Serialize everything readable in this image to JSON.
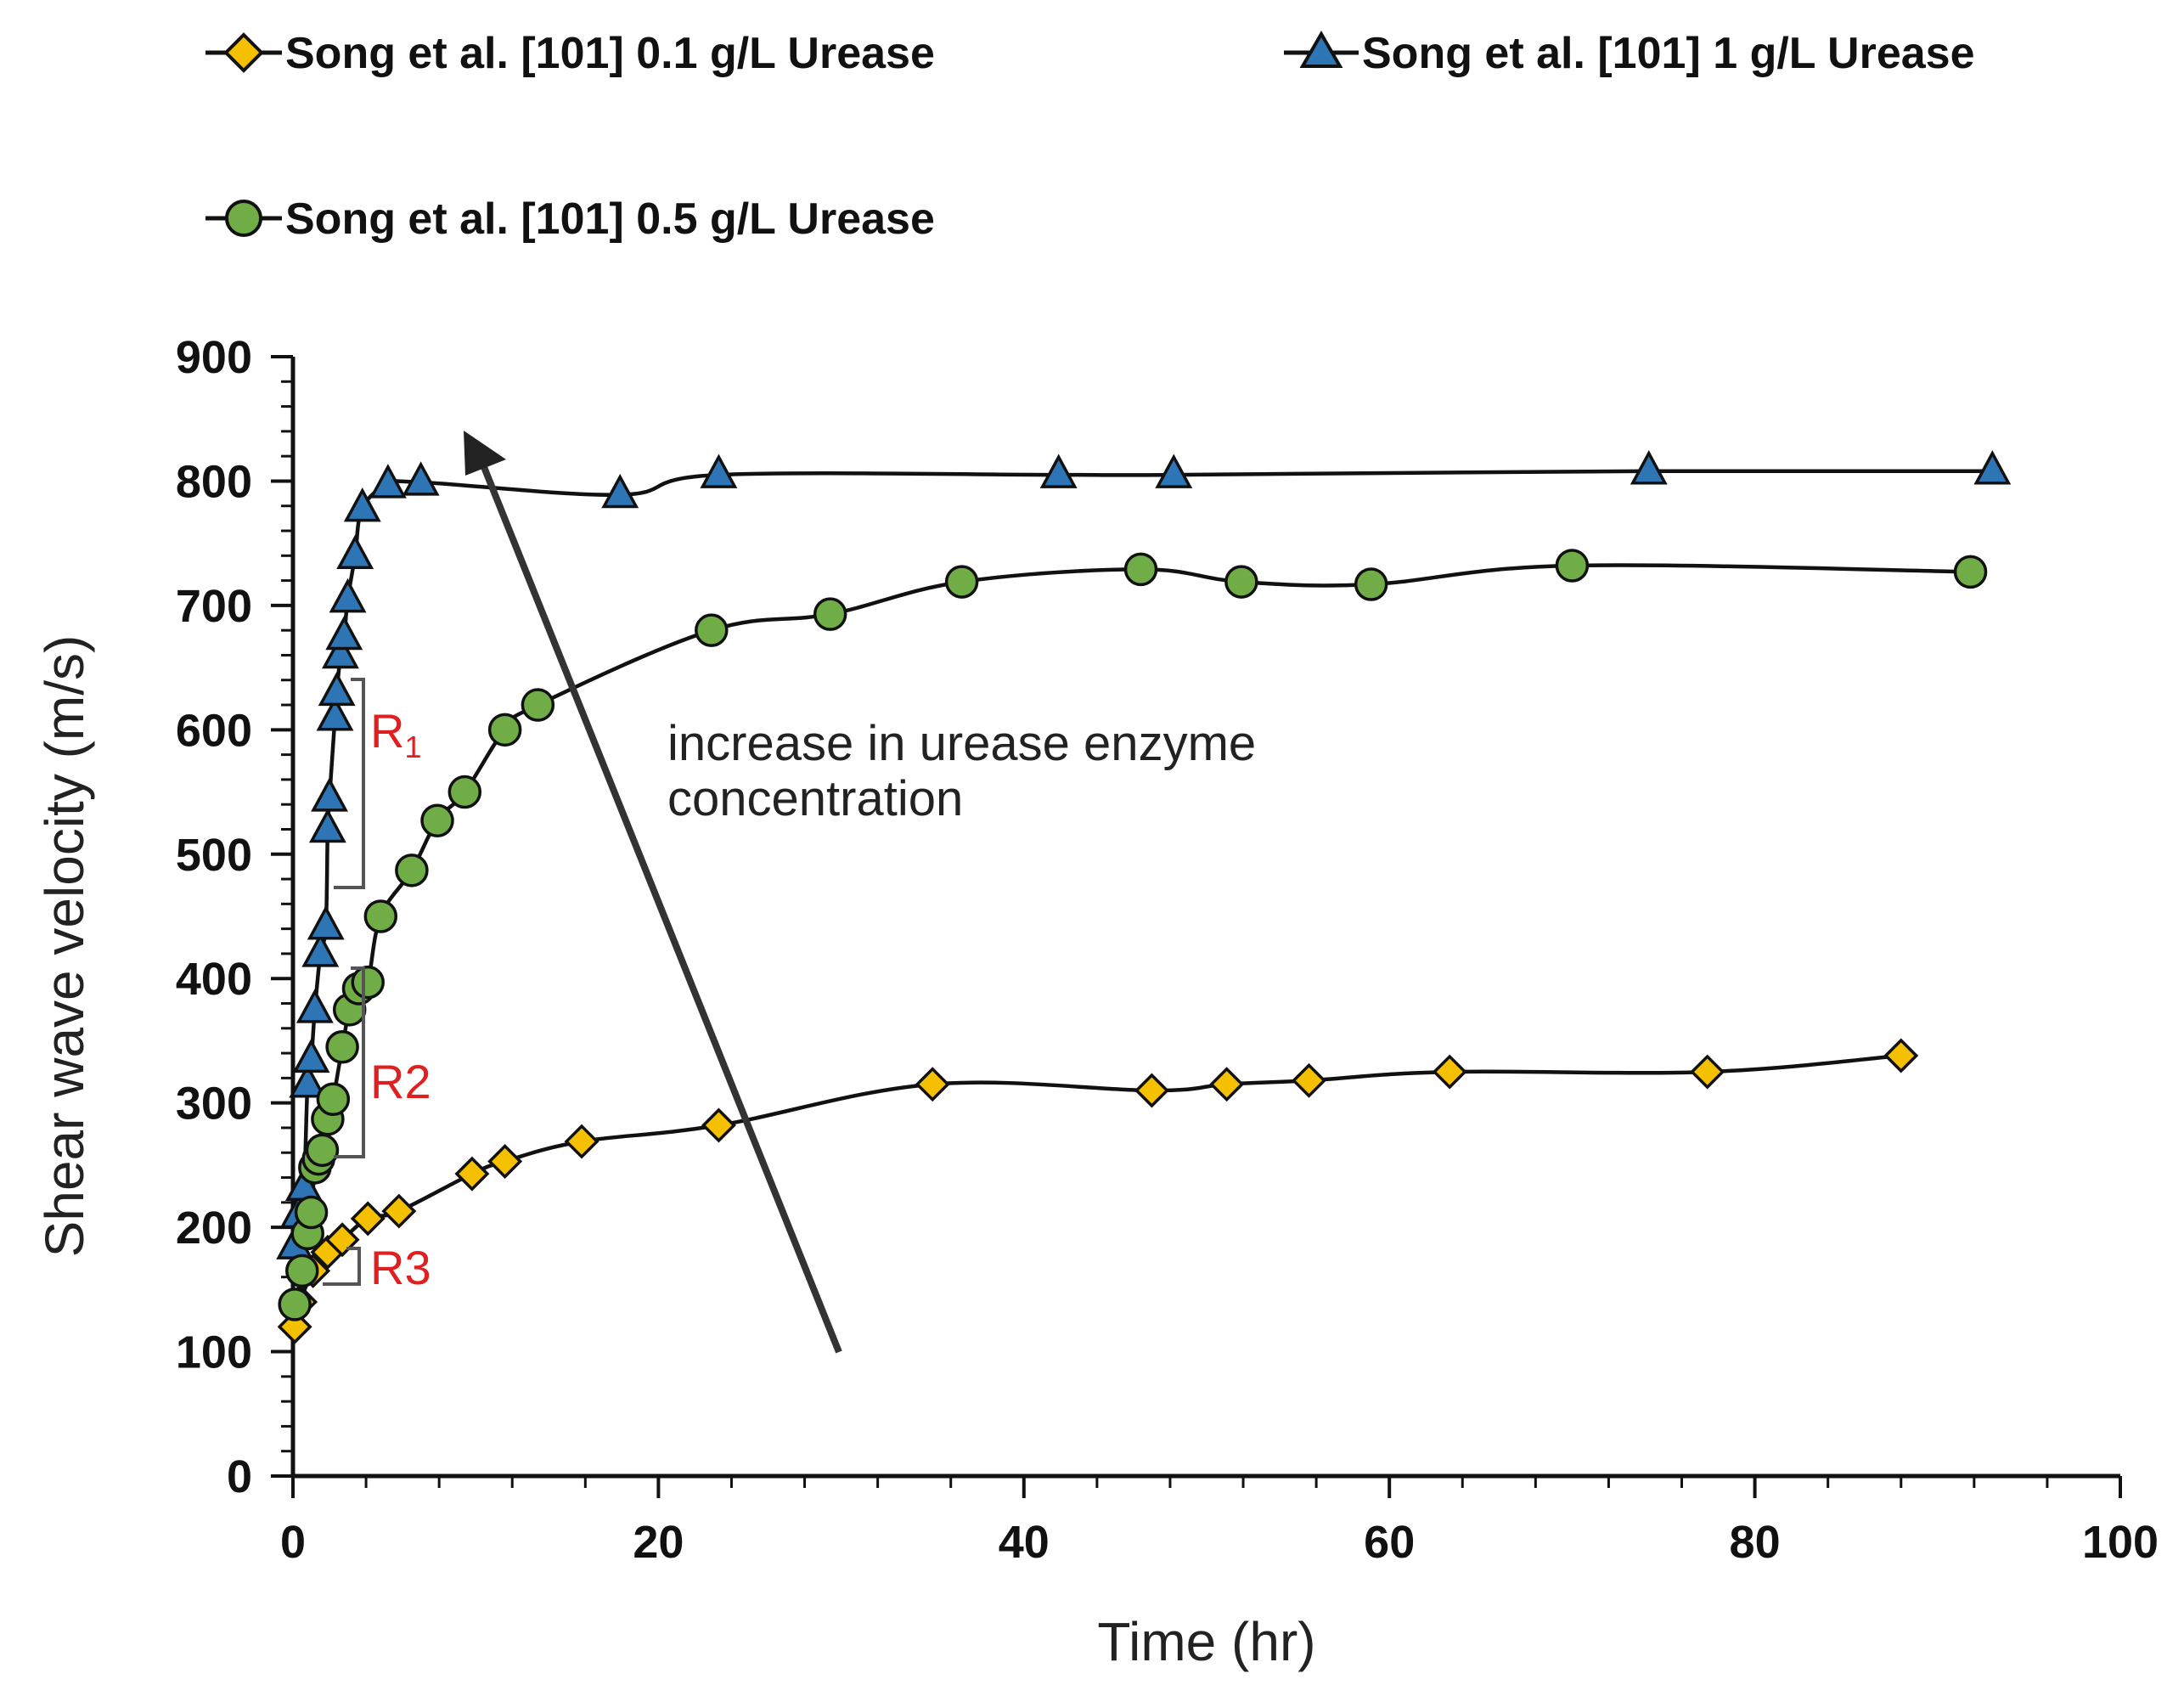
{
  "chart_data": {
    "type": "line",
    "title": "",
    "xlabel": "Time (hr)",
    "ylabel": "Shear wave velocity (m/s)",
    "xlim": [
      0,
      100
    ],
    "ylim": [
      0,
      900
    ],
    "xticks": [
      "0",
      "20",
      "40",
      "60",
      "80",
      "100"
    ],
    "yticks": [
      "0",
      "100",
      "200",
      "300",
      "400",
      "500",
      "600",
      "700",
      "800",
      "900"
    ],
    "grid": false,
    "legend_position": "top",
    "series": [
      {
        "name": "Song et al. [101] 0.1 g/L Urease",
        "marker": "diamond",
        "color": "#F5C000",
        "x": [
          0.1,
          0.4,
          1.1,
          1.9,
          2.7,
          4.1,
          5.8,
          9.8,
          11.6,
          15.8,
          23.3,
          35.0,
          47.0,
          51.1,
          55.6,
          63.3,
          77.4,
          88.0
        ],
        "y": [
          120,
          140,
          165,
          180,
          190,
          207,
          213,
          243,
          253,
          269,
          282,
          315,
          310,
          315,
          318,
          325,
          325,
          338
        ]
      },
      {
        "name": "Song et al. [101] 1 g/L Urease",
        "marker": "triangle",
        "color": "#2E75B6",
        "x": [
          0.1,
          0.3,
          0.6,
          0.8,
          1.0,
          1.2,
          1.5,
          1.8,
          1.9,
          2.0,
          2.3,
          2.4,
          2.6,
          2.8,
          3.0,
          3.4,
          3.8,
          5.2,
          7.0,
          17.9,
          23.3,
          41.9,
          48.2,
          74.2,
          93.0
        ],
        "y": [
          185,
          210,
          232,
          315,
          335,
          375,
          420,
          442,
          520,
          545,
          610,
          630,
          660,
          675,
          705,
          740,
          778,
          797,
          799,
          789,
          805,
          805,
          805,
          808,
          808
        ]
      },
      {
        "name": "Song et al. [101] 0.5 g/L Urease",
        "marker": "circle",
        "color": "#70AD47",
        "x": [
          0.1,
          0.5,
          0.8,
          1.0,
          1.2,
          1.4,
          1.6,
          1.9,
          2.2,
          2.7,
          3.1,
          3.6,
          4.1,
          4.8,
          6.5,
          7.9,
          9.4,
          11.6,
          13.4,
          22.9,
          29.4,
          36.6,
          46.4,
          51.9,
          59.0,
          70.0,
          91.8
        ],
        "y": [
          138,
          165,
          195,
          212,
          248,
          255,
          262,
          287,
          303,
          345,
          375,
          392,
          397,
          450,
          487,
          527,
          550,
          600,
          620,
          680,
          693,
          719,
          729,
          719,
          717,
          732,
          727
        ]
      }
    ],
    "annotations": {
      "arrow_text_line1": "increase in urease enzyme",
      "arrow_text_line2": "concentration",
      "region_r1_letter": "R",
      "region_r1_subscript": "1",
      "region_r2": "R2",
      "region_r3": "R3"
    }
  }
}
